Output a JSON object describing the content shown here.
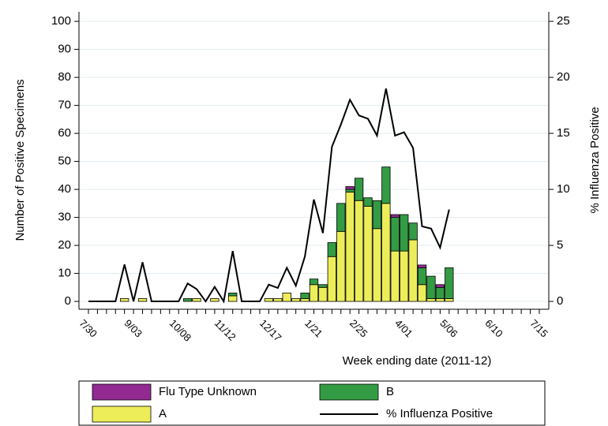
{
  "chart_data": {
    "type": "bar",
    "stacked": true,
    "xlabel": "Week ending date (2011-12)",
    "ylabel": "Number of Positive Specimens",
    "y2label": "% Influenza Positive",
    "categories": [
      "7/30",
      null,
      null,
      null,
      null,
      "9/03",
      null,
      null,
      null,
      null,
      "10/08",
      null,
      null,
      null,
      null,
      "11/12",
      null,
      null,
      null,
      null,
      "12/17",
      null,
      null,
      null,
      null,
      "1/21",
      null,
      null,
      null,
      null,
      "2/25",
      null,
      null,
      null,
      null,
      "4/01",
      null,
      null,
      null,
      null,
      "5/06",
      null,
      null,
      null,
      null,
      "6/10",
      null,
      null,
      null,
      null,
      "7/15"
    ],
    "ylim": [
      -2.8,
      103.4
    ],
    "yticks": [
      0,
      10,
      20,
      30,
      40,
      50,
      60,
      70,
      80,
      90,
      100
    ],
    "y2lim": [
      -0.7,
      25.85
    ],
    "y2ticks": [
      0,
      5,
      10,
      15,
      20,
      25
    ],
    "grid": true,
    "legend": "bottom",
    "series": [
      {
        "name": "A",
        "type": "bar",
        "color": "#eded5a",
        "values": [
          0,
          0,
          0,
          0,
          1,
          0,
          1,
          0,
          0,
          0,
          0,
          0,
          1,
          0,
          1,
          0,
          2,
          0,
          0,
          0,
          1,
          1,
          3,
          1,
          1,
          6,
          5,
          16,
          25,
          39,
          36,
          34,
          26,
          35,
          18,
          18,
          22,
          6,
          1,
          1,
          1,
          null,
          null,
          null,
          null,
          null,
          null,
          null,
          null,
          null,
          null
        ]
      },
      {
        "name": "B",
        "type": "bar",
        "color": "#339b44",
        "values": [
          0,
          0,
          0,
          0,
          0,
          0,
          0,
          0,
          0,
          0,
          0,
          1,
          0,
          0,
          0,
          0,
          1,
          0,
          0,
          0,
          0,
          0,
          0,
          0,
          2,
          2,
          1,
          5,
          10,
          1,
          8,
          3,
          10,
          13,
          12,
          13,
          6,
          6,
          8,
          4,
          11,
          null,
          null,
          null,
          null,
          null,
          null,
          null,
          null,
          null,
          null
        ]
      },
      {
        "name": "Flu Type Unknown",
        "type": "bar",
        "color": "#932a92",
        "values": [
          0,
          0,
          0,
          0,
          0,
          0,
          0,
          0,
          0,
          0,
          0,
          0,
          0,
          0,
          0,
          0,
          0,
          0,
          0,
          0,
          0,
          0,
          0,
          0,
          0,
          0,
          0,
          0,
          0,
          1,
          0,
          0,
          0,
          0,
          1,
          0,
          0,
          1,
          0,
          1,
          0,
          null,
          null,
          null,
          null,
          null,
          null,
          null,
          null,
          null,
          null
        ]
      },
      {
        "name": "% Influenza Positive",
        "type": "line",
        "axis": "y2",
        "color": "#000000",
        "values": [
          0,
          0,
          0,
          0,
          3.3,
          0,
          3.5,
          0,
          0,
          0,
          0,
          1.6,
          1.1,
          0,
          1.3,
          0,
          4.5,
          0,
          0,
          0,
          1.5,
          1.2,
          3.0,
          1.4,
          4.0,
          9.1,
          6.1,
          13.8,
          15.8,
          18.0,
          16.6,
          16.3,
          14.8,
          19.0,
          14.8,
          15.1,
          13.7,
          6.7,
          6.5,
          4.8,
          8.2,
          null,
          null,
          null,
          null,
          null,
          null,
          null,
          null,
          null,
          null
        ]
      }
    ]
  }
}
